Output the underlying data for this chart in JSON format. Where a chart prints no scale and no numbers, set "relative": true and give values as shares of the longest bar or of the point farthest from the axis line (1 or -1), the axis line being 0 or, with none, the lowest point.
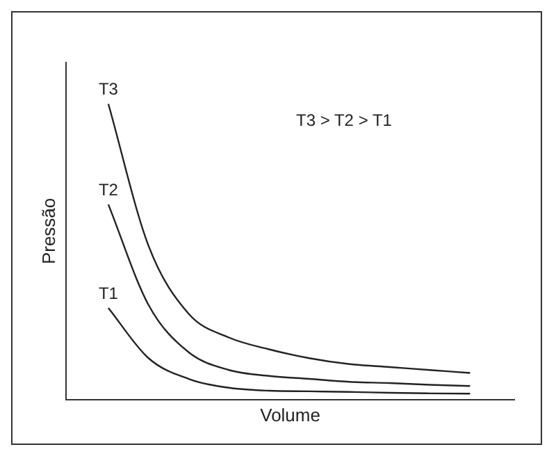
{
  "chart_data": {
    "type": "line",
    "relative": true,
    "xlabel": "Volume",
    "ylabel": "Pressão",
    "annotations": [
      "T3 > T2 > T1"
    ],
    "legend": false,
    "marker": "none",
    "line_style": "solid",
    "categories": [
      null,
      null,
      null,
      null,
      null,
      null,
      null,
      null,
      null,
      null
    ],
    "series": [
      {
        "name": "T1",
        "color": "#222222",
        "values": [
          0.31,
          0.14,
          0.07,
          0.04,
          0.03,
          0.028,
          0.026,
          0.023,
          0.021,
          0.02
        ]
      },
      {
        "name": "T2",
        "color": "#222222",
        "values": [
          0.66,
          0.32,
          0.16,
          0.1,
          0.08,
          0.07,
          0.06,
          0.056,
          0.05,
          0.046
        ]
      },
      {
        "name": "T3",
        "color": "#222222",
        "values": [
          1,
          0.52,
          0.29,
          0.21,
          0.17,
          0.14,
          0.12,
          0.11,
          0.1,
          0.09
        ]
      }
    ]
  }
}
